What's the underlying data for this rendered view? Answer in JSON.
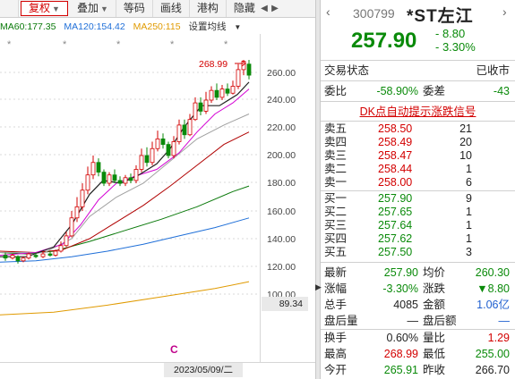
{
  "toolbar": {
    "fuquan": "复权",
    "diejia": "叠加",
    "dengma": "等码",
    "huaxian": "画线",
    "ganggou": "港构",
    "yincang": "隐藏"
  },
  "ma": {
    "ma60": "MA60:177.35",
    "ma120": "MA120:154.42",
    "ma250": "MA250:115",
    "settings": "设置均线"
  },
  "yaxis": [
    "260.00",
    "240.00",
    "220.00",
    "200.00",
    "180.00",
    "160.00",
    "140.00",
    "120.00",
    "100.00"
  ],
  "current_y_value": "89.34",
  "date_label": "2023/05/09/二",
  "peak_label": "268.99",
  "c_marker": "C",
  "stock": {
    "code": "300799",
    "name": "*ST左江",
    "price": "257.90",
    "change": "- 8.80",
    "change_pct": "- 3.30%"
  },
  "status": {
    "label": "交易状态",
    "value": "已收市"
  },
  "weibi": {
    "label": "委比",
    "value": "-58.90%",
    "label2": "委差",
    "value2": "-43"
  },
  "dk_link": "DK点自动提示涨跌信号",
  "asks": [
    {
      "name": "卖五",
      "price": "258.50",
      "qty": "21"
    },
    {
      "name": "卖四",
      "price": "258.49",
      "qty": "20"
    },
    {
      "name": "卖三",
      "price": "258.47",
      "qty": "10"
    },
    {
      "name": "卖二",
      "price": "258.44",
      "qty": "1"
    },
    {
      "name": "卖一",
      "price": "258.00",
      "qty": "6"
    }
  ],
  "bids": [
    {
      "name": "买一",
      "price": "257.90",
      "qty": "9"
    },
    {
      "name": "买二",
      "price": "257.65",
      "qty": "1"
    },
    {
      "name": "买三",
      "price": "257.64",
      "qty": "1"
    },
    {
      "name": "买四",
      "price": "257.62",
      "qty": "1"
    },
    {
      "name": "买五",
      "price": "257.50",
      "qty": "3"
    }
  ],
  "stats": {
    "zuixin": {
      "label": "最新",
      "value": "257.90"
    },
    "junjia": {
      "label": "均价",
      "value": "260.30"
    },
    "zhangfu": {
      "label": "涨幅",
      "value": "-3.30%"
    },
    "zhangdie": {
      "label": "涨跌",
      "value": "▼8.80"
    },
    "zongshou": {
      "label": "总手",
      "value": "4085"
    },
    "jine": {
      "label": "金额",
      "value": "1.06亿"
    },
    "panhouliang": {
      "label": "盘后量",
      "value": "—"
    },
    "panhoue": {
      "label": "盘后额",
      "value": "—"
    },
    "huanshou": {
      "label": "换手",
      "value": "0.60%"
    },
    "liangbi": {
      "label": "量比",
      "value": "1.29"
    },
    "zuigao": {
      "label": "最高",
      "value": "268.99"
    },
    "zuidi": {
      "label": "最低",
      "value": "255.00"
    },
    "jinkai": {
      "label": "今开",
      "value": "265.91"
    },
    "zuoshou": {
      "label": "昨收",
      "value": "266.70"
    }
  },
  "colors": {
    "up": "#d30000",
    "down": "#0a8a0a",
    "ma5": "#222222",
    "ma10": "#d400d4",
    "ma20": "#a0a0a0",
    "ma30": "#b00000",
    "ma60": "#0b7a0b",
    "ma120": "#1f6fd8",
    "ma250": "#e09a00"
  }
}
